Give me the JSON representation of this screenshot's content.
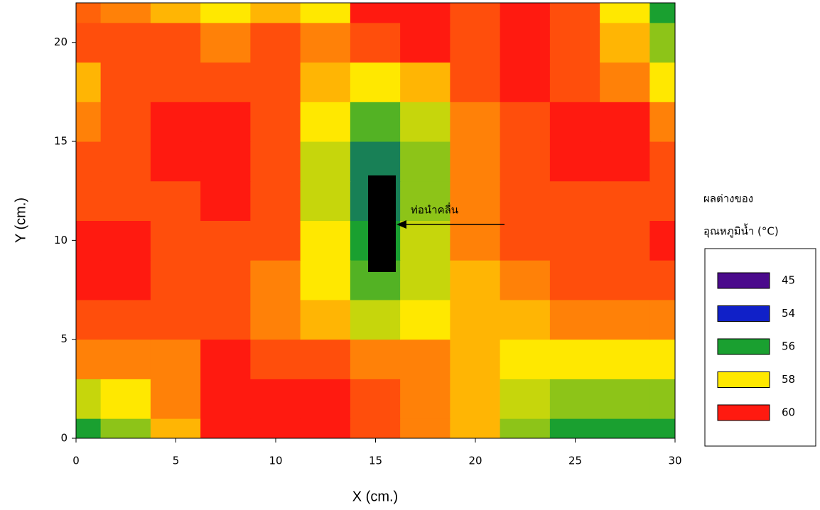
{
  "chart_data": {
    "type": "contour",
    "xlabel": "X (cm.)",
    "ylabel": "Y (cm.)",
    "xlim": [
      0,
      30
    ],
    "ylim": [
      0,
      22
    ],
    "xticks": [
      0,
      5,
      10,
      15,
      20,
      25,
      30
    ],
    "yticks": [
      0,
      5,
      10,
      15,
      20
    ],
    "x": [
      0,
      2.5,
      5,
      7.5,
      10,
      12.5,
      15,
      17.5,
      20,
      22.5,
      25,
      27.5,
      30
    ],
    "y": [
      0,
      2,
      4,
      6,
      8,
      10,
      12,
      14,
      16,
      18,
      20,
      22
    ],
    "z": [
      [
        56,
        57,
        58.5,
        60,
        60,
        60,
        59.5,
        59,
        58.5,
        57,
        56,
        56,
        56
      ],
      [
        57.5,
        58,
        59,
        60,
        60,
        60,
        59.5,
        59,
        58.5,
        57.5,
        57,
        57,
        57
      ],
      [
        59,
        59,
        59,
        60,
        59.5,
        59.5,
        59,
        59,
        58.5,
        58,
        58,
        58,
        58
      ],
      [
        59.5,
        59.5,
        59.5,
        59.5,
        59,
        58.5,
        57.5,
        58,
        58.5,
        58.5,
        59,
        59,
        59
      ],
      [
        60,
        60,
        59.5,
        59.5,
        59,
        58,
        56.5,
        57.5,
        58.5,
        59,
        59.5,
        59.5,
        59.5
      ],
      [
        60,
        60,
        59.5,
        59.5,
        59.5,
        58,
        56,
        57.5,
        59,
        59.5,
        59.5,
        59.5,
        60
      ],
      [
        59.5,
        59.5,
        59.5,
        60,
        59.5,
        57.5,
        55.5,
        57,
        59,
        59.5,
        59.5,
        59.5,
        59.5
      ],
      [
        59.5,
        59.5,
        60,
        60,
        59.5,
        57.5,
        55.5,
        57,
        59,
        59.5,
        60,
        60,
        59.5
      ],
      [
        59,
        59.5,
        60,
        60,
        59.5,
        58,
        56.5,
        57.5,
        59,
        59.5,
        60,
        60,
        59
      ],
      [
        58.5,
        59.5,
        59.5,
        59.5,
        59.5,
        58.5,
        58,
        58.5,
        59.5,
        60,
        59.5,
        59,
        58
      ],
      [
        59.5,
        59.5,
        59.5,
        59,
        59.5,
        59,
        59.5,
        60,
        59.5,
        60,
        59.5,
        58.5,
        57
      ],
      [
        59.3,
        59,
        58.5,
        58,
        58.5,
        58,
        60,
        60,
        59.5,
        60,
        59.5,
        58,
        56
      ]
    ],
    "legend_title": [
      "ผลต่างของ",
      "อุณหภูมิน้ำ (°C)"
    ],
    "levels": [
      {
        "name": "45",
        "value": 45,
        "color": "#4b0a8c"
      },
      {
        "name": "54",
        "value": 54,
        "color": "#1020c8"
      },
      {
        "name": "56",
        "value": 56,
        "color": "#1aa030"
      },
      {
        "name": "58",
        "value": 58,
        "color": "#ffe800"
      },
      {
        "name": "60",
        "value": 60,
        "color": "#ff1a10"
      }
    ],
    "annotation": "ท่อนำคลื่น"
  }
}
